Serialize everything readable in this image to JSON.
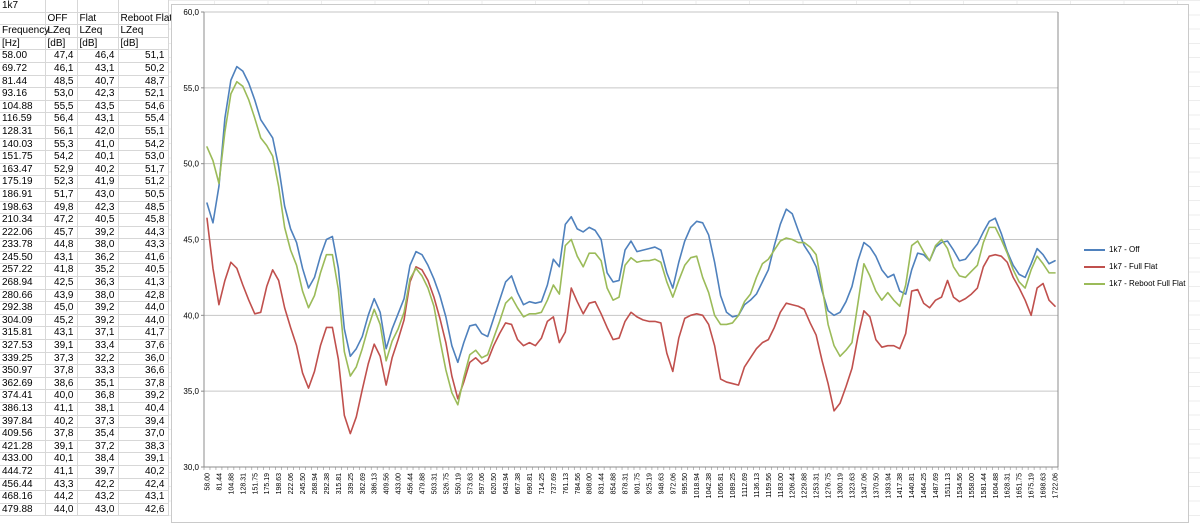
{
  "table": {
    "title_cell": "1k7",
    "column_groups": [
      "",
      "OFF",
      "Flat",
      "Reboot Flat"
    ],
    "column_names": [
      "Frequency",
      "LZeq",
      "LZeq",
      "LZeq"
    ],
    "column_units": [
      "[Hz]",
      "[dB]",
      "[dB]",
      "[dB]"
    ],
    "rows": [
      [
        "58.00",
        "47,4",
        "46,4",
        "51,1"
      ],
      [
        "69.72",
        "46,1",
        "43,1",
        "50,2"
      ],
      [
        "81.44",
        "48,5",
        "40,7",
        "48,7"
      ],
      [
        "93.16",
        "53,0",
        "42,3",
        "52,1"
      ],
      [
        "104.88",
        "55,5",
        "43,5",
        "54,6"
      ],
      [
        "116.59",
        "56,4",
        "43,1",
        "55,4"
      ],
      [
        "128.31",
        "56,1",
        "42,0",
        "55,1"
      ],
      [
        "140.03",
        "55,3",
        "41,0",
        "54,2"
      ],
      [
        "151.75",
        "54,2",
        "40,1",
        "53,0"
      ],
      [
        "163.47",
        "52,9",
        "40,2",
        "51,7"
      ],
      [
        "175.19",
        "52,3",
        "41,9",
        "51,2"
      ],
      [
        "186.91",
        "51,7",
        "43,0",
        "50,5"
      ],
      [
        "198.63",
        "49,8",
        "42,3",
        "48,5"
      ],
      [
        "210.34",
        "47,2",
        "40,5",
        "45,8"
      ],
      [
        "222.06",
        "45,7",
        "39,2",
        "44,3"
      ],
      [
        "233.78",
        "44,8",
        "38,0",
        "43,3"
      ],
      [
        "245.50",
        "43,1",
        "36,2",
        "41,6"
      ],
      [
        "257.22",
        "41,8",
        "35,2",
        "40,5"
      ],
      [
        "268.94",
        "42,5",
        "36,3",
        "41,3"
      ],
      [
        "280.66",
        "43,9",
        "38,0",
        "42,8"
      ],
      [
        "292.38",
        "45,0",
        "39,2",
        "44,0"
      ],
      [
        "304.09",
        "45,2",
        "39,2",
        "44,0"
      ],
      [
        "315.81",
        "43,1",
        "37,1",
        "41,7"
      ],
      [
        "327.53",
        "39,1",
        "33,4",
        "37,6"
      ],
      [
        "339.25",
        "37,3",
        "32,2",
        "36,0"
      ],
      [
        "350.97",
        "37,8",
        "33,3",
        "36,6"
      ],
      [
        "362.69",
        "38,6",
        "35,1",
        "37,8"
      ],
      [
        "374.41",
        "40,0",
        "36,8",
        "39,2"
      ],
      [
        "386.13",
        "41,1",
        "38,1",
        "40,4"
      ],
      [
        "397.84",
        "40,2",
        "37,3",
        "39,4"
      ],
      [
        "409.56",
        "37,8",
        "35,4",
        "37,0"
      ],
      [
        "421.28",
        "39,1",
        "37,2",
        "38,3"
      ],
      [
        "433.00",
        "40,1",
        "38,4",
        "39,1"
      ],
      [
        "444.72",
        "41,1",
        "39,7",
        "40,2"
      ],
      [
        "456.44",
        "43,3",
        "42,2",
        "42,4"
      ],
      [
        "468.16",
        "44,2",
        "43,2",
        "43,1"
      ],
      [
        "479.88",
        "44,0",
        "43,0",
        "42,6"
      ]
    ]
  },
  "chart_data": {
    "type": "line",
    "title": "",
    "xlabel": "",
    "ylabel": "",
    "ylim": [
      30,
      60
    ],
    "ytick_step": 5,
    "ytick_labels": [
      "30,0",
      "35,0",
      "40,0",
      "45,0",
      "50,0",
      "55,0",
      "60,0"
    ],
    "grid": true,
    "legend_position": "right",
    "axis_color": "#8c8c8c",
    "gridline_color": "#c6c6c6",
    "x": [
      58.0,
      69.72,
      81.44,
      93.16,
      104.88,
      116.59,
      128.31,
      140.03,
      151.75,
      163.47,
      175.19,
      186.91,
      198.63,
      210.34,
      222.06,
      233.78,
      245.5,
      257.22,
      268.94,
      280.66,
      292.38,
      304.09,
      315.81,
      327.53,
      339.25,
      350.97,
      362.69,
      374.41,
      386.13,
      397.84,
      409.56,
      421.28,
      433.0,
      444.72,
      456.44,
      468.16,
      479.88,
      491.59,
      503.31,
      515.03,
      526.75,
      538.47,
      550.19,
      561.91,
      573.63,
      585.34,
      597.06,
      608.78,
      620.5,
      632.22,
      643.94,
      655.66,
      667.38,
      679.09,
      690.81,
      702.53,
      714.25,
      725.97,
      737.69,
      749.41,
      761.13,
      772.84,
      784.56,
      796.28,
      808.0,
      819.72,
      831.44,
      843.16,
      854.88,
      866.59,
      878.31,
      890.03,
      901.75,
      913.47,
      925.19,
      936.91,
      948.63,
      960.34,
      972.06,
      983.78,
      995.5,
      1007.22,
      1018.94,
      1030.66,
      1042.38,
      1054.09,
      1065.81,
      1077.53,
      1089.25,
      1100.97,
      1112.69,
      1124.41,
      1136.13,
      1147.84,
      1159.56,
      1171.28,
      1183.0,
      1194.72,
      1206.44,
      1218.16,
      1229.88,
      1241.59,
      1253.31,
      1265.03,
      1276.75,
      1288.47,
      1300.19,
      1311.91,
      1323.63,
      1335.34,
      1347.06,
      1358.78,
      1370.5,
      1382.22,
      1393.94,
      1405.66,
      1417.38,
      1429.09,
      1440.81,
      1452.53,
      1464.25,
      1475.97,
      1487.69,
      1499.41,
      1511.13,
      1522.84,
      1534.56,
      1546.28,
      1558.0,
      1569.72,
      1581.44,
      1593.16,
      1604.88,
      1616.59,
      1628.31,
      1640.03,
      1651.75,
      1663.47,
      1675.19,
      1686.91,
      1698.63,
      1710.34,
      1722.06
    ],
    "x_tick_labels": [
      "58.00",
      "81.44",
      "104.88",
      "128.31",
      "151.75",
      "175.19",
      "198.63",
      "222.06",
      "245.50",
      "268.94",
      "292.38",
      "315.81",
      "339.25",
      "362.69",
      "386.13",
      "409.56",
      "433.00",
      "456.44",
      "479.88",
      "503.31",
      "526.75",
      "550.19",
      "573.63",
      "597.06",
      "620.50",
      "643.94",
      "667.38",
      "690.81",
      "714.25",
      "737.69",
      "761.13",
      "784.56",
      "808.00",
      "831.44",
      "854.88",
      "878.31",
      "901.75",
      "925.19",
      "948.63",
      "972.06",
      "995.50",
      "1018.94",
      "1042.38",
      "1065.81",
      "1089.25",
      "1112.69",
      "1136.13",
      "1159.56",
      "1183.00",
      "1206.44",
      "1229.88",
      "1253.31",
      "1276.75",
      "1300.19",
      "1323.63",
      "1347.06",
      "1370.50",
      "1393.94",
      "1417.38",
      "1440.81",
      "1464.25",
      "1487.69",
      "1511.13",
      "1534.56",
      "1558.00",
      "1581.44",
      "1604.88",
      "1628.31",
      "1651.75",
      "1675.19",
      "1698.63",
      "1722.06"
    ],
    "series": [
      {
        "name": "1k7 - Off",
        "color": "#4F81BD",
        "values": [
          47.4,
          46.1,
          48.5,
          53.0,
          55.5,
          56.4,
          56.1,
          55.3,
          54.2,
          52.9,
          52.3,
          51.7,
          49.8,
          47.2,
          45.7,
          44.8,
          43.1,
          41.8,
          42.5,
          43.9,
          45.0,
          45.2,
          43.1,
          39.1,
          37.3,
          37.8,
          38.6,
          40.0,
          41.1,
          40.2,
          37.8,
          39.1,
          40.1,
          41.1,
          43.3,
          44.2,
          44.0,
          43.3,
          42.4,
          41.3,
          39.9,
          38.0,
          36.9,
          38.2,
          39.3,
          39.4,
          38.8,
          38.6,
          39.8,
          41.0,
          42.2,
          42.6,
          41.5,
          40.7,
          40.9,
          40.8,
          40.9,
          42.0,
          43.7,
          43.2,
          46.0,
          46.5,
          45.7,
          45.5,
          45.8,
          45.6,
          45.0,
          42.8,
          42.2,
          42.3,
          44.3,
          44.9,
          44.2,
          44.3,
          44.4,
          44.5,
          44.3,
          42.8,
          41.8,
          43.5,
          44.9,
          45.8,
          46.2,
          46.1,
          45.3,
          43.5,
          41.3,
          40.2,
          39.9,
          40.0,
          40.7,
          41.0,
          41.4,
          42.2,
          43.0,
          44.6,
          46.0,
          47.0,
          46.7,
          45.6,
          44.6,
          44.0,
          43.2,
          41.6,
          40.3,
          40.0,
          40.2,
          40.9,
          41.9,
          43.6,
          44.8,
          44.5,
          43.9,
          43.0,
          42.5,
          42.7,
          41.6,
          41.4,
          43.0,
          44.1,
          44.0,
          43.6,
          44.5,
          44.8,
          44.9,
          44.3,
          43.6,
          43.7,
          44.2,
          44.7,
          45.5,
          46.2,
          46.4,
          45.4,
          44.2,
          43.3,
          42.7,
          42.5,
          43.4,
          44.4,
          44.0,
          43.4,
          43.6
        ]
      },
      {
        "name": "1k7 - Full Flat",
        "color": "#C0504D",
        "values": [
          46.4,
          43.1,
          40.7,
          42.3,
          43.5,
          43.1,
          42.0,
          41.0,
          40.1,
          40.2,
          41.9,
          43.0,
          42.3,
          40.5,
          39.2,
          38.0,
          36.2,
          35.2,
          36.3,
          38.0,
          39.2,
          39.2,
          37.1,
          33.4,
          32.2,
          33.3,
          35.1,
          36.8,
          38.1,
          37.3,
          35.4,
          37.2,
          38.4,
          39.7,
          42.2,
          43.2,
          43.0,
          42.3,
          41.2,
          39.8,
          38.2,
          36.0,
          34.5,
          35.6,
          36.9,
          37.2,
          36.8,
          37.0,
          38.0,
          38.8,
          39.5,
          39.4,
          38.4,
          38.0,
          38.2,
          38.0,
          38.5,
          39.6,
          39.9,
          38.2,
          38.9,
          41.8,
          40.9,
          40.1,
          40.8,
          40.9,
          40.1,
          39.2,
          38.4,
          38.5,
          39.6,
          40.2,
          39.9,
          39.7,
          39.6,
          39.6,
          39.5,
          37.5,
          36.3,
          38.5,
          39.8,
          40.0,
          40.1,
          40.0,
          39.4,
          38.0,
          35.8,
          35.6,
          35.5,
          35.4,
          36.6,
          37.2,
          37.8,
          38.2,
          38.4,
          39.2,
          40.2,
          40.8,
          40.7,
          40.6,
          40.4,
          39.5,
          38.7,
          37.0,
          35.5,
          33.7,
          34.2,
          35.3,
          36.5,
          38.6,
          40.3,
          39.9,
          38.4,
          37.9,
          38.0,
          38.0,
          37.8,
          38.8,
          41.6,
          41.7,
          40.8,
          40.5,
          41.0,
          41.2,
          42.3,
          41.2,
          40.9,
          41.1,
          41.4,
          41.8,
          43.2,
          43.9,
          44.0,
          43.9,
          43.5,
          42.5,
          41.8,
          41.0,
          40.0,
          41.8,
          42.1,
          41.0,
          40.6
        ]
      },
      {
        "name": "1k7 - Reboot Full Flat",
        "color": "#9BBB59",
        "values": [
          51.1,
          50.2,
          48.7,
          52.1,
          54.6,
          55.4,
          55.1,
          54.2,
          53.0,
          51.7,
          51.2,
          50.5,
          48.5,
          45.8,
          44.3,
          43.3,
          41.6,
          40.5,
          41.3,
          42.8,
          44.0,
          44.0,
          41.7,
          37.6,
          36.0,
          36.6,
          37.8,
          39.2,
          40.4,
          39.4,
          37.0,
          38.3,
          39.1,
          40.2,
          42.4,
          43.1,
          42.6,
          41.8,
          40.6,
          38.4,
          36.4,
          34.9,
          34.1,
          35.9,
          37.4,
          37.7,
          37.2,
          37.4,
          38.5,
          39.6,
          40.8,
          41.2,
          40.5,
          39.9,
          40.1,
          40.1,
          40.2,
          41.0,
          42.0,
          41.4,
          44.6,
          45.0,
          43.9,
          43.2,
          44.1,
          44.1,
          43.6,
          41.8,
          41.0,
          41.2,
          43.3,
          43.8,
          43.5,
          43.6,
          43.6,
          43.7,
          43.5,
          42.2,
          41.2,
          42.3,
          43.3,
          43.8,
          43.9,
          42.5,
          41.5,
          40.0,
          39.4,
          39.4,
          39.5,
          40.0,
          40.9,
          41.4,
          42.5,
          43.4,
          43.7,
          44.3,
          44.9,
          45.1,
          45.0,
          44.8,
          44.8,
          44.5,
          44.0,
          41.9,
          39.4,
          38.0,
          37.3,
          37.7,
          38.2,
          40.8,
          43.4,
          42.6,
          41.6,
          41.0,
          41.5,
          41.0,
          40.6,
          42.0,
          44.6,
          44.9,
          44.2,
          43.6,
          44.6,
          45.0,
          44.4,
          43.2,
          42.6,
          42.5,
          42.9,
          43.3,
          44.8,
          45.8,
          45.8,
          45.0,
          44.1,
          43.0,
          42.2,
          41.8,
          43.0,
          43.9,
          43.4,
          42.8,
          42.8
        ]
      }
    ]
  }
}
